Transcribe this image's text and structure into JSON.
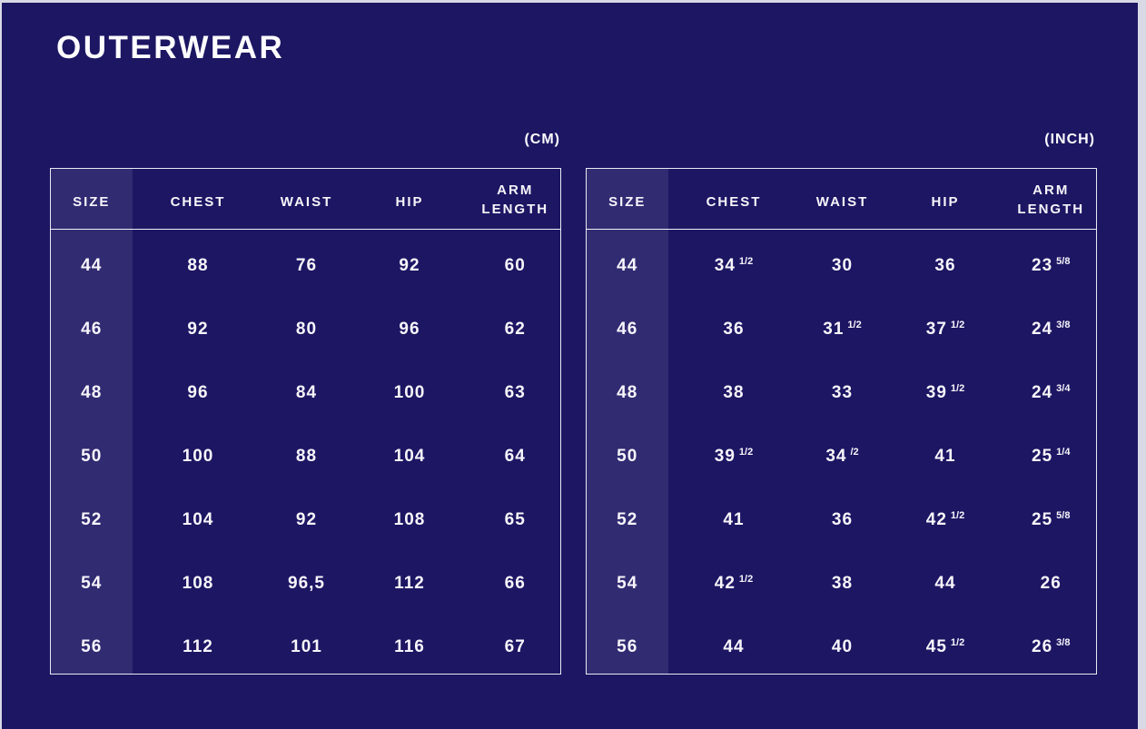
{
  "page": {
    "title": "OUTERWEAR",
    "background_color": "#1c1663",
    "size_band_color": "#312b72",
    "text_color": "#f7f5fa",
    "border_color": "#e9e9f2",
    "outer_frame_color": "#d9d9e6"
  },
  "tables": [
    {
      "unit_label": "(CM)",
      "columns": [
        "SIZE",
        "CHEST",
        "WAIST",
        "HIP",
        "ARM LENGTH"
      ],
      "rows": [
        {
          "size": "44",
          "cells": [
            [
              "88"
            ],
            [
              "76"
            ],
            [
              "92"
            ],
            [
              "60"
            ]
          ]
        },
        {
          "size": "46",
          "cells": [
            [
              "92"
            ],
            [
              "80"
            ],
            [
              "96"
            ],
            [
              "62"
            ]
          ]
        },
        {
          "size": "48",
          "cells": [
            [
              "96"
            ],
            [
              "84"
            ],
            [
              "100"
            ],
            [
              "63"
            ]
          ]
        },
        {
          "size": "50",
          "cells": [
            [
              "100"
            ],
            [
              "88"
            ],
            [
              "104"
            ],
            [
              "64"
            ]
          ]
        },
        {
          "size": "52",
          "cells": [
            [
              "104"
            ],
            [
              "92"
            ],
            [
              "108"
            ],
            [
              "65"
            ]
          ]
        },
        {
          "size": "54",
          "cells": [
            [
              "108"
            ],
            [
              "96,5"
            ],
            [
              "112"
            ],
            [
              "66"
            ]
          ]
        },
        {
          "size": "56",
          "cells": [
            [
              "112"
            ],
            [
              "101"
            ],
            [
              "116"
            ],
            [
              "67"
            ]
          ]
        }
      ]
    },
    {
      "unit_label": "(INCH)",
      "columns": [
        "SIZE",
        "CHEST",
        "WAIST",
        "HIP",
        "ARM LENGTH"
      ],
      "rows": [
        {
          "size": "44",
          "cells": [
            [
              "34",
              "1/2"
            ],
            [
              "30"
            ],
            [
              "36"
            ],
            [
              "23",
              "5/8"
            ]
          ]
        },
        {
          "size": "46",
          "cells": [
            [
              "36"
            ],
            [
              "31",
              "1/2"
            ],
            [
              "37",
              "1/2"
            ],
            [
              "24",
              "3/8"
            ]
          ]
        },
        {
          "size": "48",
          "cells": [
            [
              "38"
            ],
            [
              "33"
            ],
            [
              "39",
              "1/2"
            ],
            [
              "24",
              "3/4"
            ]
          ]
        },
        {
          "size": "50",
          "cells": [
            [
              "39",
              "1/2"
            ],
            [
              "34",
              "/2"
            ],
            [
              "41"
            ],
            [
              "25",
              "1/4"
            ]
          ]
        },
        {
          "size": "52",
          "cells": [
            [
              "41"
            ],
            [
              "36"
            ],
            [
              "42",
              "1/2"
            ],
            [
              "25",
              "5/8"
            ]
          ]
        },
        {
          "size": "54",
          "cells": [
            [
              "42",
              "1/2"
            ],
            [
              "38"
            ],
            [
              "44"
            ],
            [
              "26"
            ]
          ]
        },
        {
          "size": "56",
          "cells": [
            [
              "44"
            ],
            [
              "40"
            ],
            [
              "45",
              "1/2"
            ],
            [
              "26",
              "3/8"
            ]
          ]
        }
      ]
    }
  ]
}
